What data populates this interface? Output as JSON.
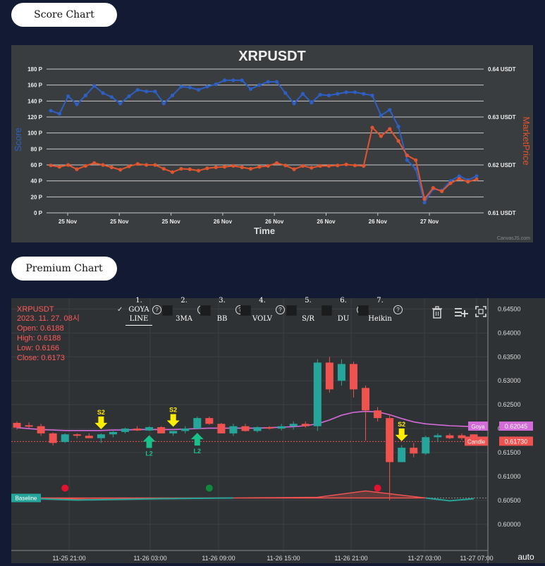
{
  "sections": {
    "score_title": "Score Chart",
    "premium_title": "Premium Chart"
  },
  "score_chart_text": {
    "title": "XRPUSDT",
    "xlabel": "Time",
    "ylabel_left": "Score",
    "ylabel_right": "MarketPrice",
    "watermark": "CanvasJS.com",
    "x_ticks": [
      "25 Nov",
      "25 Nov",
      "25 Nov",
      "26 Nov",
      "26 Nov",
      "26 Nov",
      "26 Nov",
      "27 Nov"
    ],
    "y_left_ticks": [
      "180 P",
      "160 P",
      "140 P",
      "120 P",
      "100 P",
      "80 P",
      "60 P",
      "40 P",
      "20 P",
      "0 P"
    ],
    "y_right_ticks": [
      "0.64 USDT",
      "0.63 USDT",
      "0.62 USDT",
      "0.61 USDT"
    ]
  },
  "toolbar": {
    "items": [
      {
        "num": "1.",
        "label": "GOYA LINE",
        "checked": true
      },
      {
        "num": "2.",
        "label": "3MA",
        "checked": false
      },
      {
        "num": "3.",
        "label": "BB",
        "checked": false
      },
      {
        "num": "4.",
        "label": "VOLV",
        "checked": false
      },
      {
        "num": "5.",
        "label": "S/R",
        "checked": false
      },
      {
        "num": "6.",
        "label": "DU",
        "checked": false
      },
      {
        "num": "7.",
        "label": "Heikin",
        "checked": false
      }
    ],
    "help_glyph": "?"
  },
  "ohlc": {
    "symbol": "XRPUSDT",
    "date": "2023. 11. 27. 08시",
    "open": "Open: 0.6188",
    "high": "High: 0.6188",
    "low": "Low: 0.6166",
    "close": "Close: 0.6173"
  },
  "premium_labels": {
    "goya": "Goya",
    "goya_value": "0.62045",
    "candle": "Candle",
    "candle_value": "0.61730",
    "baseline": "Baseline",
    "auto": "auto",
    "x_ticks": [
      "11-25 21:00",
      "11-26 03:00",
      "11-26 09:00",
      "11-26 15:00",
      "11-26 21:00",
      "11-27 03:00",
      "11-27 07:00"
    ],
    "y_ticks": [
      "0.64500",
      "0.64000",
      "0.63500",
      "0.63000",
      "0.62500",
      "0.62000",
      "0.61500",
      "0.61000",
      "0.60500",
      "0.60000"
    ],
    "signal_s2": "S2",
    "signal_l2": "L2"
  },
  "colors": {
    "score_line": "#2d5fc4",
    "price_line": "#e0552e",
    "bull": "#26a69a",
    "bear": "#ef5350",
    "goya": "#d36bd8",
    "signal_yellow": "#ffee00",
    "signal_green": "#19c08a"
  },
  "chart_data": [
    {
      "type": "line",
      "title": "XRPUSDT",
      "xlabel": "Time",
      "ylabel": "Score",
      "y2label": "MarketPrice",
      "ylim": [
        0,
        180
      ],
      "y2lim": [
        0.61,
        0.64
      ],
      "series": [
        {
          "name": "Score",
          "axis": "left",
          "values": [
            128,
            124,
            146,
            136,
            147,
            159,
            150,
            145,
            137,
            146,
            154,
            152,
            152,
            137,
            147,
            158,
            157,
            154,
            158,
            161,
            166,
            166,
            166,
            155,
            160,
            164,
            164,
            150,
            137,
            149,
            138,
            148,
            147,
            149,
            151,
            151,
            149,
            147,
            122,
            129,
            108,
            66,
            55,
            13,
            30,
            28,
            40,
            46,
            41,
            46
          ]
        },
        {
          "name": "MarketPrice",
          "axis": "right",
          "values": [
            0.6199,
            0.6196,
            0.62,
            0.6191,
            0.6198,
            0.6204,
            0.62,
            0.6195,
            0.619,
            0.6197,
            0.6202,
            0.62,
            0.62,
            0.6192,
            0.6185,
            0.6192,
            0.6191,
            0.6188,
            0.6193,
            0.6195,
            0.6196,
            0.6198,
            0.6195,
            0.6192,
            0.6196,
            0.6198,
            0.6204,
            0.6199,
            0.6191,
            0.6198,
            0.6194,
            0.6198,
            0.6198,
            0.6199,
            0.6201,
            0.6199,
            0.6198,
            0.6278,
            0.626,
            0.6275,
            0.625,
            0.622,
            0.621,
            0.6129,
            0.6152,
            0.6145,
            0.6162,
            0.6171,
            0.6165,
            0.617
          ]
        }
      ]
    },
    {
      "type": "candlestick",
      "title": "XRPUSDT",
      "ylim": [
        0.5985,
        0.6455
      ],
      "candles": [
        {
          "o": 0.6212,
          "h": 0.6215,
          "l": 0.6198,
          "c": 0.6202
        },
        {
          "o": 0.6207,
          "h": 0.6213,
          "l": 0.62,
          "c": 0.6205
        },
        {
          "o": 0.6205,
          "h": 0.621,
          "l": 0.6185,
          "c": 0.619
        },
        {
          "o": 0.619,
          "h": 0.6192,
          "l": 0.6165,
          "c": 0.617
        },
        {
          "o": 0.6172,
          "h": 0.619,
          "l": 0.617,
          "c": 0.6188
        },
        {
          "o": 0.6188,
          "h": 0.619,
          "l": 0.618,
          "c": 0.6185
        },
        {
          "o": 0.6185,
          "h": 0.619,
          "l": 0.618,
          "c": 0.618
        },
        {
          "o": 0.618,
          "h": 0.619,
          "l": 0.617,
          "c": 0.6188
        },
        {
          "o": 0.6188,
          "h": 0.6195,
          "l": 0.6182,
          "c": 0.6193
        },
        {
          "o": 0.6193,
          "h": 0.6202,
          "l": 0.619,
          "c": 0.62
        },
        {
          "o": 0.62,
          "h": 0.6205,
          "l": 0.6195,
          "c": 0.6196
        },
        {
          "o": 0.6196,
          "h": 0.6205,
          "l": 0.6195,
          "c": 0.6203
        },
        {
          "o": 0.6203,
          "h": 0.6205,
          "l": 0.619,
          "c": 0.619
        },
        {
          "o": 0.619,
          "h": 0.6195,
          "l": 0.6185,
          "c": 0.6195
        },
        {
          "o": 0.6195,
          "h": 0.6205,
          "l": 0.619,
          "c": 0.62
        },
        {
          "o": 0.62,
          "h": 0.6225,
          "l": 0.62,
          "c": 0.6222
        },
        {
          "o": 0.6222,
          "h": 0.6225,
          "l": 0.6208,
          "c": 0.621
        },
        {
          "o": 0.621,
          "h": 0.6212,
          "l": 0.619,
          "c": 0.619
        },
        {
          "o": 0.619,
          "h": 0.621,
          "l": 0.6185,
          "c": 0.6205
        },
        {
          "o": 0.6205,
          "h": 0.621,
          "l": 0.6194,
          "c": 0.6195
        },
        {
          "o": 0.6195,
          "h": 0.6205,
          "l": 0.6192,
          "c": 0.6203
        },
        {
          "o": 0.6203,
          "h": 0.6205,
          "l": 0.6198,
          "c": 0.62
        },
        {
          "o": 0.62,
          "h": 0.621,
          "l": 0.6196,
          "c": 0.6205
        },
        {
          "o": 0.6205,
          "h": 0.6215,
          "l": 0.6198,
          "c": 0.621
        },
        {
          "o": 0.621,
          "h": 0.6215,
          "l": 0.6202,
          "c": 0.6205
        },
        {
          "o": 0.6205,
          "h": 0.6345,
          "l": 0.6195,
          "c": 0.6338
        },
        {
          "o": 0.6338,
          "h": 0.635,
          "l": 0.6275,
          "c": 0.6282
        },
        {
          "o": 0.63,
          "h": 0.6345,
          "l": 0.629,
          "c": 0.6335
        },
        {
          "o": 0.6335,
          "h": 0.634,
          "l": 0.6265,
          "c": 0.6282
        },
        {
          "o": 0.6285,
          "h": 0.629,
          "l": 0.6175,
          "c": 0.6238
        },
        {
          "o": 0.6238,
          "h": 0.6245,
          "l": 0.6215,
          "c": 0.6222
        },
        {
          "o": 0.6222,
          "h": 0.623,
          "l": 0.605,
          "c": 0.613
        },
        {
          "o": 0.613,
          "h": 0.6165,
          "l": 0.613,
          "c": 0.616
        },
        {
          "o": 0.616,
          "h": 0.617,
          "l": 0.614,
          "c": 0.6148
        },
        {
          "o": 0.6148,
          "h": 0.6185,
          "l": 0.6145,
          "c": 0.6182
        },
        {
          "o": 0.6182,
          "h": 0.619,
          "l": 0.6172,
          "c": 0.6186
        },
        {
          "o": 0.6186,
          "h": 0.619,
          "l": 0.6178,
          "c": 0.618
        },
        {
          "o": 0.6186,
          "h": 0.619,
          "l": 0.6176,
          "c": 0.618
        },
        {
          "o": 0.6188,
          "h": 0.6188,
          "l": 0.6166,
          "c": 0.6173
        }
      ],
      "goya_line": [
        0.6202,
        0.62,
        0.6198,
        0.6197,
        0.6196,
        0.6196,
        0.6196,
        0.6196,
        0.6197,
        0.6197,
        0.6198,
        0.6198,
        0.6198,
        0.6198,
        0.6199,
        0.62,
        0.6201,
        0.6201,
        0.6201,
        0.6201,
        0.6201,
        0.6202,
        0.6203,
        0.6204,
        0.6206,
        0.621,
        0.6218,
        0.6228,
        0.6234,
        0.6236,
        0.6235,
        0.6229,
        0.6221,
        0.6214,
        0.621,
        0.6208,
        0.6206,
        0.6205,
        0.6204
      ],
      "baseline": 0.6055,
      "sell_signals": [
        {
          "index": 7,
          "label": "S2"
        },
        {
          "index": 13,
          "label": "S2"
        },
        {
          "index": 32,
          "label": "S2"
        }
      ],
      "buy_signals": [
        {
          "index": 11,
          "label": "L2"
        },
        {
          "index": 15,
          "label": "L2"
        }
      ],
      "dots": [
        {
          "index": 4,
          "color": "red"
        },
        {
          "index": 16,
          "color": "green"
        },
        {
          "index": 30,
          "color": "red"
        }
      ]
    }
  ]
}
